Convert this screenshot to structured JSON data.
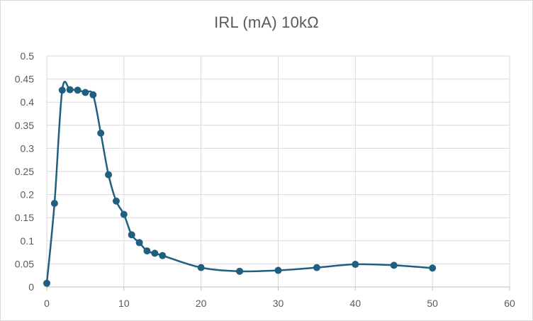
{
  "chart_data": {
    "type": "line",
    "title": "IRL (mA) 10kΩ",
    "xlabel": "",
    "ylabel": "",
    "xlim": [
      0,
      60
    ],
    "ylim": [
      0,
      0.5
    ],
    "x_ticks": [
      0,
      10,
      20,
      30,
      40,
      50,
      60
    ],
    "y_ticks": [
      0,
      0.05,
      0.1,
      0.15,
      0.2,
      0.25,
      0.3,
      0.35,
      0.4,
      0.45,
      0.5
    ],
    "x_tick_labels": [
      "0",
      "10",
      "20",
      "30",
      "40",
      "50",
      "60"
    ],
    "y_tick_labels": [
      "0",
      "0.05",
      "0.1",
      "0.15",
      "0.2",
      "0.25",
      "0.3",
      "0.35",
      "0.4",
      "0.45",
      "0.5"
    ],
    "grid": true,
    "legend": "none",
    "smooth": true,
    "color": "#1f5f7f",
    "grid_color": "#d9d9d9",
    "series": [
      {
        "x": [
          0,
          1,
          2,
          3,
          4,
          5,
          6,
          7,
          8,
          9,
          10,
          11,
          12,
          13,
          14,
          15,
          20,
          25,
          30,
          35,
          40,
          45,
          50
        ],
        "y": [
          0.008,
          0.181,
          0.426,
          0.427,
          0.426,
          0.421,
          0.416,
          0.333,
          0.243,
          0.186,
          0.157,
          0.113,
          0.096,
          0.078,
          0.073,
          0.068,
          0.042,
          0.034,
          0.036,
          0.042,
          0.049,
          0.047,
          0.041
        ]
      }
    ]
  }
}
